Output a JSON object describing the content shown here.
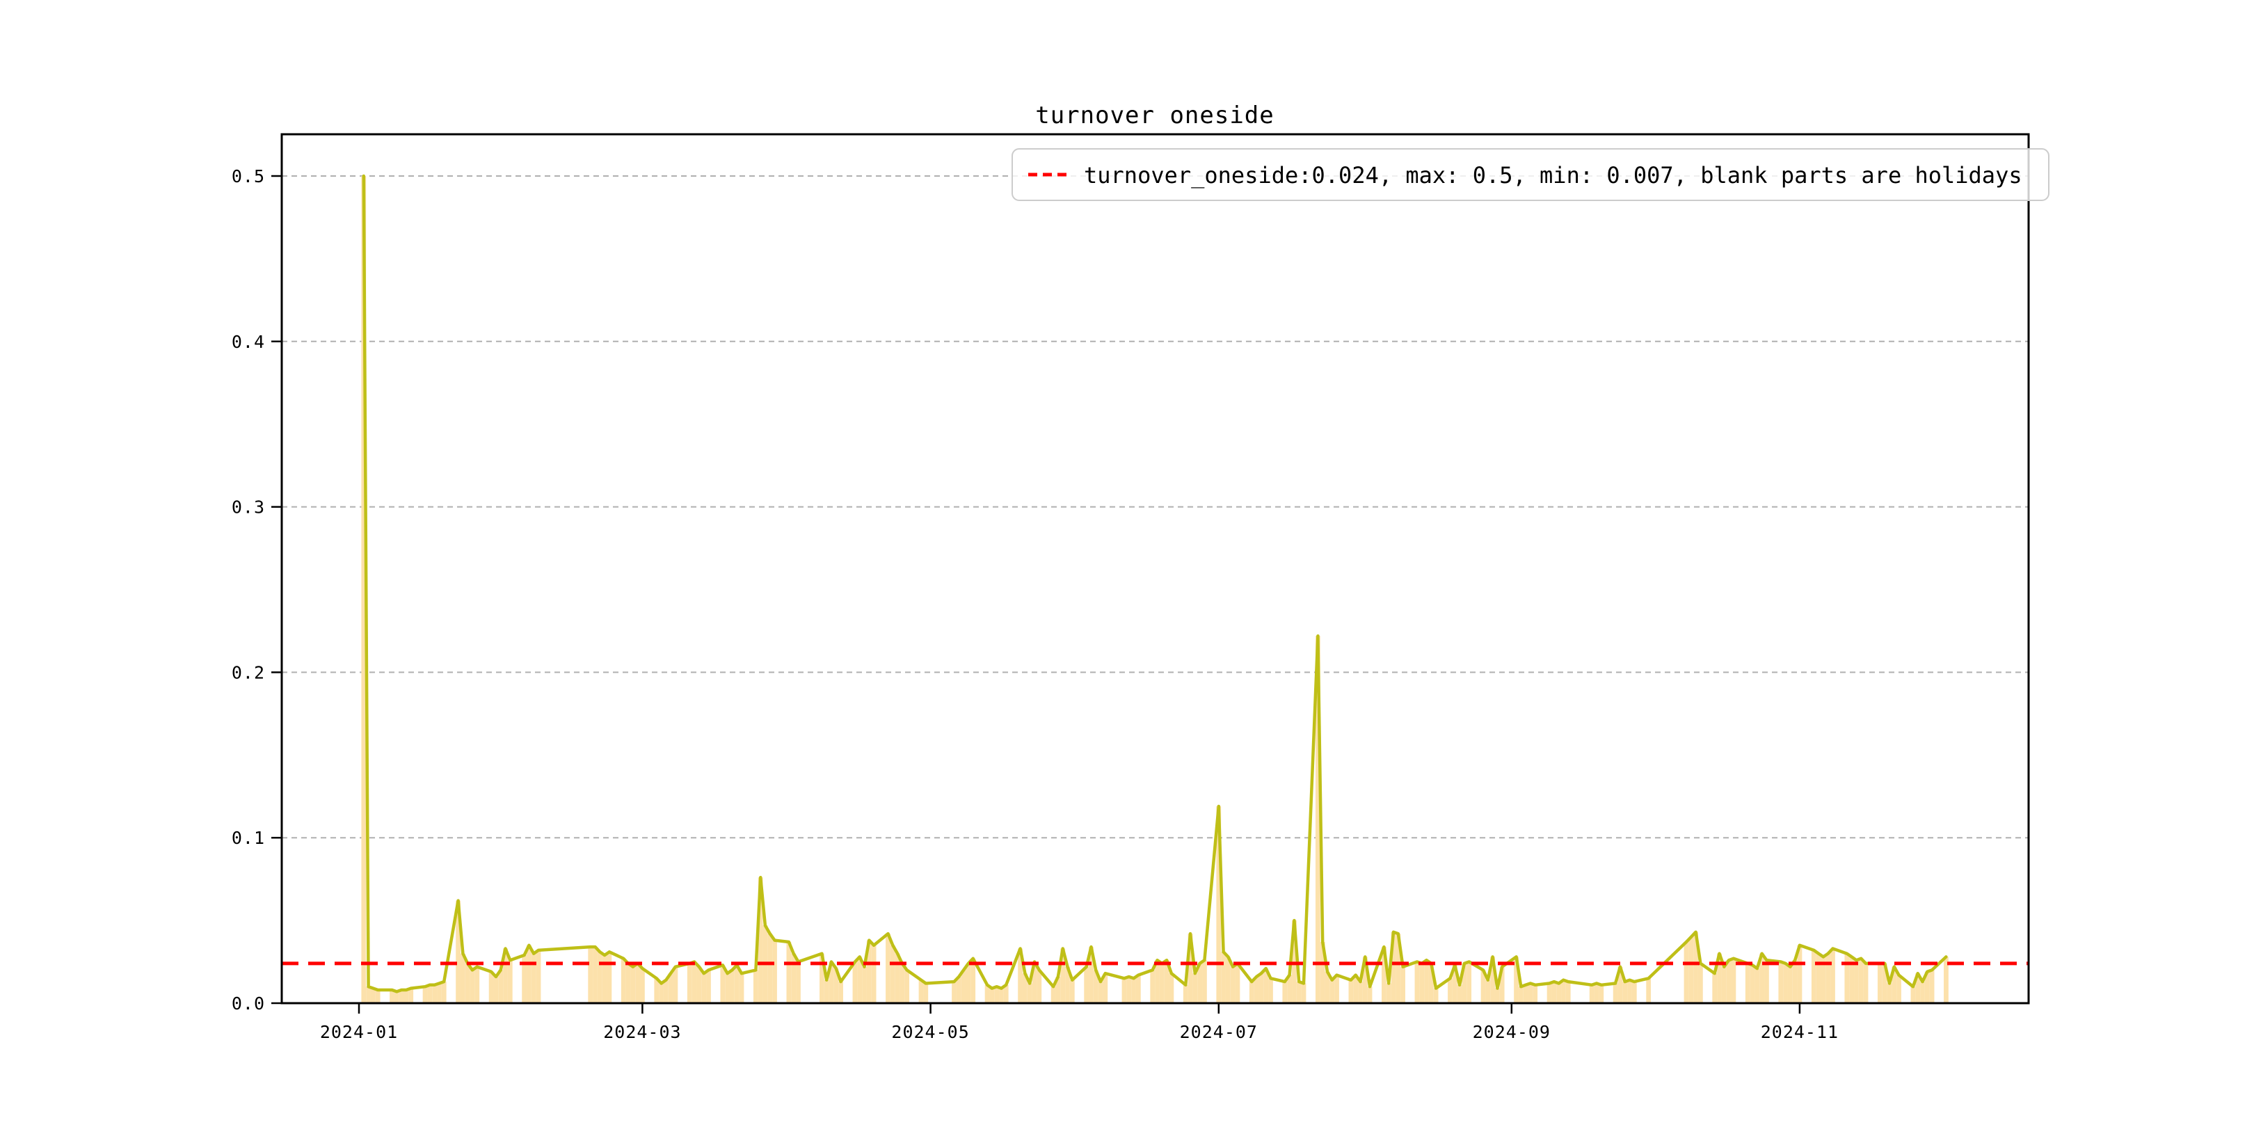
{
  "figure": {
    "title": "turnover oneside",
    "background": "#ffffff"
  },
  "legend": {
    "label": "turnover_oneside:0.024, max: 0.5, min: 0.007, blank parts are holidays",
    "sample_style": "red-dashed-line",
    "position": "upper right"
  },
  "stats": {
    "mean": 0.024,
    "max": 0.5,
    "min": 0.007
  },
  "colors": {
    "line": "#bfbf17",
    "bar": "#fce1ab",
    "mean_line": "#ff0000",
    "grid": "#b0b0b0",
    "spine": "#000000",
    "legend_border": "#cccccc",
    "legend_bg": "rgba(255,255,255,0.8)"
  },
  "chart_data": {
    "type": "bar",
    "subtype": "bar-plus-line-time-series",
    "title": "turnover oneside",
    "xlabel": "",
    "ylabel": "",
    "ylim": [
      0.0,
      0.525
    ],
    "grid": "horizontal-dashed",
    "legend_position": "upper right",
    "mean_line": 0.024,
    "x_tick_labels": [
      "2024-01",
      "2024-03",
      "2024-05",
      "2024-07",
      "2024-09",
      "2024-11"
    ],
    "y_tick_labels": [
      "0.0",
      "0.1",
      "0.2",
      "0.3",
      "0.4",
      "0.5"
    ],
    "y_tick_values": [
      0.0,
      0.1,
      0.2,
      0.3,
      0.4,
      0.5
    ],
    "note": "blank parts are holidays",
    "dates": [
      "2024-01-02",
      "2024-01-03",
      "2024-01-04",
      "2024-01-05",
      "2024-01-08",
      "2024-01-09",
      "2024-01-10",
      "2024-01-11",
      "2024-01-12",
      "2024-01-15",
      "2024-01-16",
      "2024-01-17",
      "2024-01-18",
      "2024-01-19",
      "2024-01-22",
      "2024-01-23",
      "2024-01-24",
      "2024-01-25",
      "2024-01-26",
      "2024-01-29",
      "2024-01-30",
      "2024-01-31",
      "2024-02-01",
      "2024-02-02",
      "2024-02-05",
      "2024-02-06",
      "2024-02-07",
      "2024-02-08",
      "2024-02-19",
      "2024-02-20",
      "2024-02-21",
      "2024-02-22",
      "2024-02-23",
      "2024-02-26",
      "2024-02-27",
      "2024-02-28",
      "2024-02-29",
      "2024-03-01",
      "2024-03-04",
      "2024-03-05",
      "2024-03-06",
      "2024-03-07",
      "2024-03-08",
      "2024-03-11",
      "2024-03-12",
      "2024-03-13",
      "2024-03-14",
      "2024-03-15",
      "2024-03-18",
      "2024-03-19",
      "2024-03-20",
      "2024-03-21",
      "2024-03-22",
      "2024-03-25",
      "2024-03-26",
      "2024-03-27",
      "2024-03-28",
      "2024-03-29",
      "2024-04-01",
      "2024-04-02",
      "2024-04-03",
      "2024-04-08",
      "2024-04-09",
      "2024-04-10",
      "2024-04-11",
      "2024-04-12",
      "2024-04-15",
      "2024-04-16",
      "2024-04-17",
      "2024-04-18",
      "2024-04-19",
      "2024-04-22",
      "2024-04-23",
      "2024-04-24",
      "2024-04-25",
      "2024-04-26",
      "2024-04-29",
      "2024-04-30",
      "2024-05-06",
      "2024-05-07",
      "2024-05-08",
      "2024-05-09",
      "2024-05-10",
      "2024-05-13",
      "2024-05-14",
      "2024-05-15",
      "2024-05-16",
      "2024-05-17",
      "2024-05-20",
      "2024-05-21",
      "2024-05-22",
      "2024-05-23",
      "2024-05-24",
      "2024-05-27",
      "2024-05-28",
      "2024-05-29",
      "2024-05-30",
      "2024-05-31",
      "2024-06-03",
      "2024-06-04",
      "2024-06-05",
      "2024-06-06",
      "2024-06-07",
      "2024-06-11",
      "2024-06-12",
      "2024-06-13",
      "2024-06-14",
      "2024-06-17",
      "2024-06-18",
      "2024-06-19",
      "2024-06-20",
      "2024-06-21",
      "2024-06-24",
      "2024-06-25",
      "2024-06-26",
      "2024-06-27",
      "2024-06-28",
      "2024-07-01",
      "2024-07-02",
      "2024-07-03",
      "2024-07-04",
      "2024-07-05",
      "2024-07-08",
      "2024-07-09",
      "2024-07-10",
      "2024-07-11",
      "2024-07-12",
      "2024-07-15",
      "2024-07-16",
      "2024-07-17",
      "2024-07-18",
      "2024-07-19",
      "2024-07-22",
      "2024-07-23",
      "2024-07-24",
      "2024-07-25",
      "2024-07-26",
      "2024-07-29",
      "2024-07-30",
      "2024-07-31",
      "2024-08-01",
      "2024-08-02",
      "2024-08-05",
      "2024-08-06",
      "2024-08-07",
      "2024-08-08",
      "2024-08-09",
      "2024-08-12",
      "2024-08-13",
      "2024-08-14",
      "2024-08-15",
      "2024-08-16",
      "2024-08-19",
      "2024-08-20",
      "2024-08-21",
      "2024-08-22",
      "2024-08-23",
      "2024-08-26",
      "2024-08-27",
      "2024-08-28",
      "2024-08-29",
      "2024-08-30",
      "2024-09-02",
      "2024-09-03",
      "2024-09-04",
      "2024-09-05",
      "2024-09-06",
      "2024-09-09",
      "2024-09-10",
      "2024-09-11",
      "2024-09-12",
      "2024-09-13",
      "2024-09-18",
      "2024-09-19",
      "2024-09-20",
      "2024-09-23",
      "2024-09-24",
      "2024-09-25",
      "2024-09-26",
      "2024-09-27",
      "2024-09-30",
      "2024-10-08",
      "2024-10-09",
      "2024-10-10",
      "2024-10-11",
      "2024-10-14",
      "2024-10-15",
      "2024-10-16",
      "2024-10-17",
      "2024-10-18",
      "2024-10-21",
      "2024-10-22",
      "2024-10-23",
      "2024-10-24",
      "2024-10-25",
      "2024-10-28",
      "2024-10-29",
      "2024-10-30",
      "2024-10-31",
      "2024-11-01",
      "2024-11-04",
      "2024-11-05",
      "2024-11-06",
      "2024-11-07",
      "2024-11-08",
      "2024-11-11",
      "2024-11-12",
      "2024-11-13",
      "2024-11-14",
      "2024-11-15",
      "2024-11-18",
      "2024-11-19",
      "2024-11-20",
      "2024-11-21",
      "2024-11-22",
      "2024-11-25",
      "2024-11-26",
      "2024-11-27",
      "2024-11-28",
      "2024-11-29",
      "2024-12-02"
    ],
    "values": [
      0.5,
      0.01,
      0.009,
      0.008,
      0.008,
      0.007,
      0.008,
      0.008,
      0.009,
      0.01,
      0.011,
      0.011,
      0.012,
      0.013,
      0.062,
      0.03,
      0.024,
      0.02,
      0.022,
      0.019,
      0.016,
      0.02,
      0.033,
      0.026,
      0.029,
      0.035,
      0.03,
      0.032,
      0.034,
      0.034,
      0.031,
      0.029,
      0.031,
      0.027,
      0.024,
      0.022,
      0.024,
      0.021,
      0.015,
      0.012,
      0.014,
      0.018,
      0.022,
      0.024,
      0.025,
      0.022,
      0.018,
      0.02,
      0.023,
      0.018,
      0.02,
      0.023,
      0.018,
      0.02,
      0.076,
      0.047,
      0.042,
      0.038,
      0.037,
      0.03,
      0.025,
      0.03,
      0.014,
      0.025,
      0.021,
      0.013,
      0.025,
      0.028,
      0.022,
      0.038,
      0.035,
      0.042,
      0.035,
      0.03,
      0.024,
      0.02,
      0.014,
      0.012,
      0.013,
      0.016,
      0.02,
      0.024,
      0.027,
      0.011,
      0.009,
      0.01,
      0.009,
      0.011,
      0.033,
      0.018,
      0.012,
      0.025,
      0.02,
      0.01,
      0.016,
      0.033,
      0.022,
      0.014,
      0.022,
      0.034,
      0.02,
      0.013,
      0.018,
      0.015,
      0.016,
      0.015,
      0.017,
      0.02,
      0.026,
      0.024,
      0.026,
      0.018,
      0.011,
      0.042,
      0.018,
      0.024,
      0.026,
      0.119,
      0.031,
      0.028,
      0.022,
      0.024,
      0.013,
      0.016,
      0.018,
      0.021,
      0.015,
      0.013,
      0.017,
      0.05,
      0.013,
      0.012,
      0.222,
      0.037,
      0.019,
      0.014,
      0.017,
      0.014,
      0.017,
      0.013,
      0.028,
      0.01,
      0.034,
      0.012,
      0.043,
      0.042,
      0.022,
      0.025,
      0.024,
      0.026,
      0.024,
      0.009,
      0.015,
      0.023,
      0.011,
      0.024,
      0.025,
      0.02,
      0.014,
      0.028,
      0.009,
      0.022,
      0.028,
      0.01,
      0.011,
      0.012,
      0.011,
      0.012,
      0.013,
      0.012,
      0.014,
      0.013,
      0.011,
      0.012,
      0.011,
      0.012,
      0.022,
      0.013,
      0.014,
      0.013,
      0.015,
      0.037,
      0.04,
      0.043,
      0.024,
      0.018,
      0.03,
      0.022,
      0.026,
      0.027,
      0.024,
      0.023,
      0.021,
      0.03,
      0.026,
      0.025,
      0.024,
      0.022,
      0.026,
      0.035,
      0.032,
      0.03,
      0.028,
      0.03,
      0.033,
      0.03,
      0.028,
      0.026,
      0.027,
      0.024,
      0.024,
      0.024,
      0.012,
      0.022,
      0.017,
      0.01,
      0.018,
      0.013,
      0.019,
      0.02,
      0.028
    ]
  }
}
